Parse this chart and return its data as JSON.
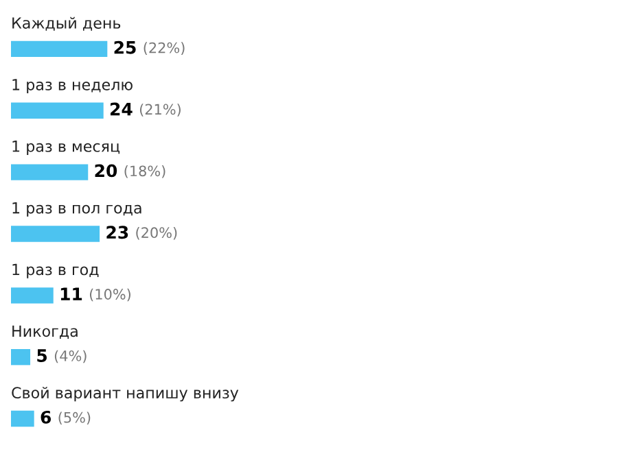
{
  "chart_data": {
    "type": "bar",
    "orientation": "horizontal",
    "categories": [
      "Каждый день",
      "1 раз в неделю",
      "1 раз в месяц",
      "1 раз в пол года",
      "1 раз в год",
      "Никогда",
      "Свой вариант напишу внизу"
    ],
    "values": [
      25,
      24,
      20,
      23,
      11,
      5,
      6
    ],
    "color": "#4cc3f0",
    "value_labels": [
      "25 (22%)",
      "24 (21%)",
      "20 (18%)",
      "23 (20%)",
      "11 (10%)",
      "5 (4%)",
      "6 (5%)"
    ]
  }
}
